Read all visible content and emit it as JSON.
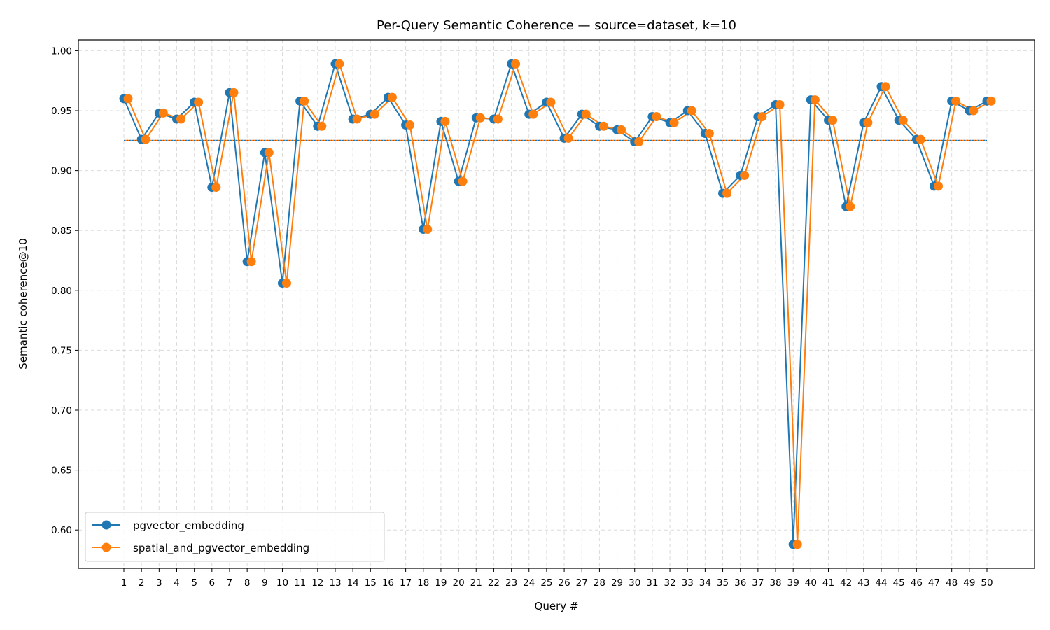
{
  "chart_data": {
    "type": "line",
    "title": "Per-Query Semantic Coherence — source=dataset, k=10",
    "xlabel": "Query #",
    "ylabel": "Semantic coherence@10",
    "ylim": [
      0.568,
      1.009
    ],
    "yticks": [
      0.6,
      0.65,
      0.7,
      0.75,
      0.8,
      0.85,
      0.9,
      0.95,
      1.0
    ],
    "grid": true,
    "legend_position": "lower-left",
    "x": [
      1,
      2,
      3,
      4,
      5,
      6,
      7,
      8,
      9,
      10,
      11,
      12,
      13,
      14,
      15,
      16,
      17,
      18,
      19,
      20,
      21,
      22,
      23,
      24,
      25,
      26,
      27,
      28,
      29,
      30,
      31,
      32,
      33,
      34,
      35,
      36,
      37,
      38,
      39,
      40,
      41,
      42,
      43,
      44,
      45,
      46,
      47,
      48,
      49,
      50
    ],
    "series": [
      {
        "name": "pgvector_embedding",
        "color": "#1f77b4",
        "values": [
          0.96,
          0.926,
          0.948,
          0.943,
          0.957,
          0.886,
          0.965,
          0.824,
          0.915,
          0.806,
          0.958,
          0.937,
          0.989,
          0.943,
          0.947,
          0.961,
          0.938,
          0.851,
          0.941,
          0.891,
          0.944,
          0.943,
          0.989,
          0.947,
          0.957,
          0.927,
          0.947,
          0.937,
          0.934,
          0.924,
          0.945,
          0.94,
          0.95,
          0.931,
          0.881,
          0.896,
          0.945,
          0.955,
          0.588,
          0.959,
          0.942,
          0.87,
          0.94,
          0.97,
          0.942,
          0.926,
          0.887,
          0.958,
          0.95,
          0.958
        ],
        "mean": 0.925
      },
      {
        "name": "spatial_and_pgvector_embedding",
        "color": "#ff7f0e",
        "values": [
          0.96,
          0.926,
          0.948,
          0.943,
          0.957,
          0.886,
          0.965,
          0.824,
          0.915,
          0.806,
          0.958,
          0.937,
          0.989,
          0.943,
          0.947,
          0.961,
          0.938,
          0.851,
          0.941,
          0.891,
          0.944,
          0.943,
          0.989,
          0.947,
          0.957,
          0.927,
          0.947,
          0.937,
          0.934,
          0.924,
          0.945,
          0.94,
          0.95,
          0.931,
          0.881,
          0.896,
          0.945,
          0.955,
          0.588,
          0.959,
          0.942,
          0.87,
          0.94,
          0.97,
          0.942,
          0.926,
          0.887,
          0.958,
          0.95,
          0.958
        ],
        "mean": 0.925
      }
    ]
  }
}
